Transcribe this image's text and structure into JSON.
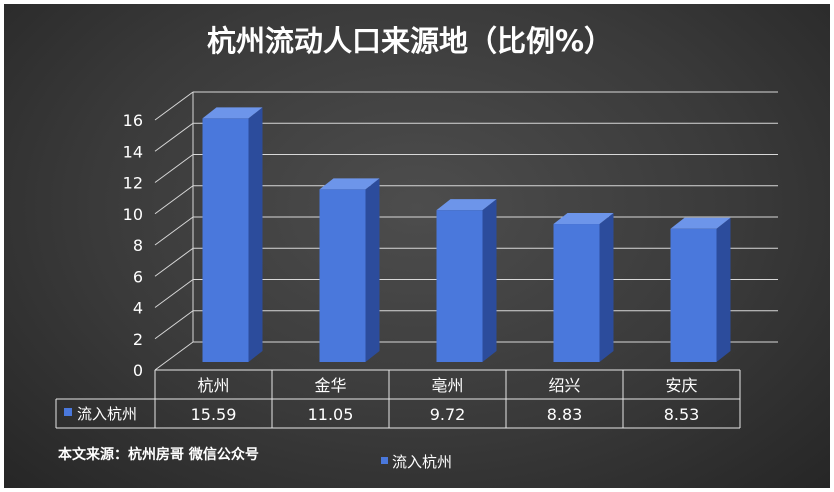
{
  "chart_data": {
    "type": "bar",
    "title": "杭州流动人口来源地（比例%）",
    "categories": [
      "杭州",
      "金华",
      "亳州",
      "绍兴",
      "安庆"
    ],
    "series": [
      {
        "name": "流入杭州",
        "values": [
          15.59,
          11.05,
          9.72,
          8.83,
          8.53
        ]
      }
    ],
    "value_labels": [
      "15.59",
      "11.05",
      "9.72",
      "8.83",
      "8.53"
    ],
    "y_ticks": [
      "0",
      "2",
      "4",
      "6",
      "8",
      "10",
      "12",
      "14",
      "16"
    ],
    "ylim": [
      0,
      16
    ],
    "grid": true,
    "legend": "bottom",
    "data_table": true,
    "style": "3d-column",
    "colors": {
      "bar_front": "#4a78dc",
      "bar_side": "#2c4c9c",
      "bar_top": "#6d95ea",
      "grid": "#d8d8d8",
      "text": "#ffffff",
      "background": "#3f3f3f"
    }
  },
  "footer": {
    "source_text": "本文来源：杭州房哥 微信公众号"
  }
}
